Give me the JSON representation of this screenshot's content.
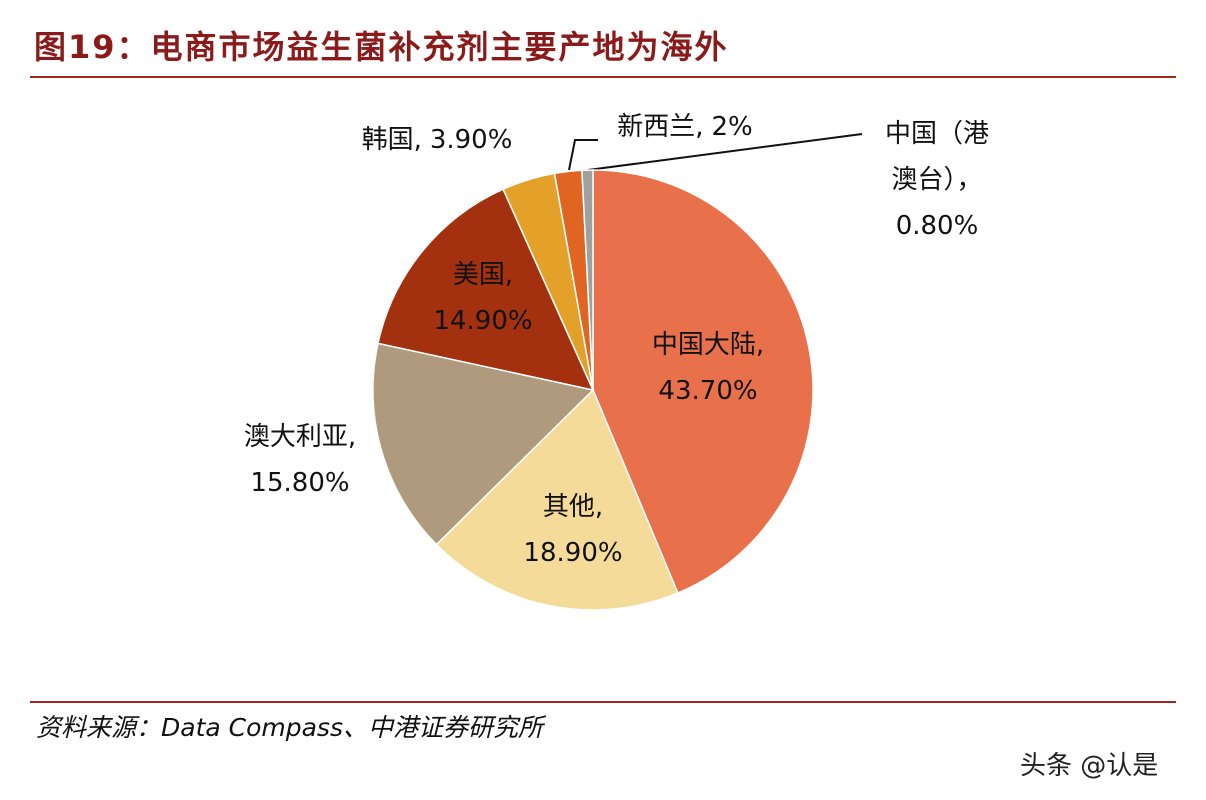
{
  "chart_data": {
    "type": "pie",
    "title": "图19：电商市场益生菌补充剂主要产地为海外",
    "source": "资料来源：Data Compass、中港证券研究所",
    "watermark": "头条 @认是",
    "categories": [
      "中国大陆,",
      "其他,",
      "澳大利亚,",
      "美国,",
      "韩国,",
      "新西兰,",
      "中国（港澳台），"
    ],
    "values": [
      43.7,
      18.9,
      15.8,
      14.9,
      3.9,
      2,
      0.8
    ],
    "value_labels": [
      "43.70%",
      "18.90%",
      "15.80%",
      "14.90%",
      "3.90%",
      "2%",
      "0.80%"
    ],
    "colors": [
      "#e8704a",
      "#f5db9a",
      "#b09a7e",
      "#a3310f",
      "#e3a12a",
      "#e06422",
      "#a0a0a0"
    ]
  }
}
